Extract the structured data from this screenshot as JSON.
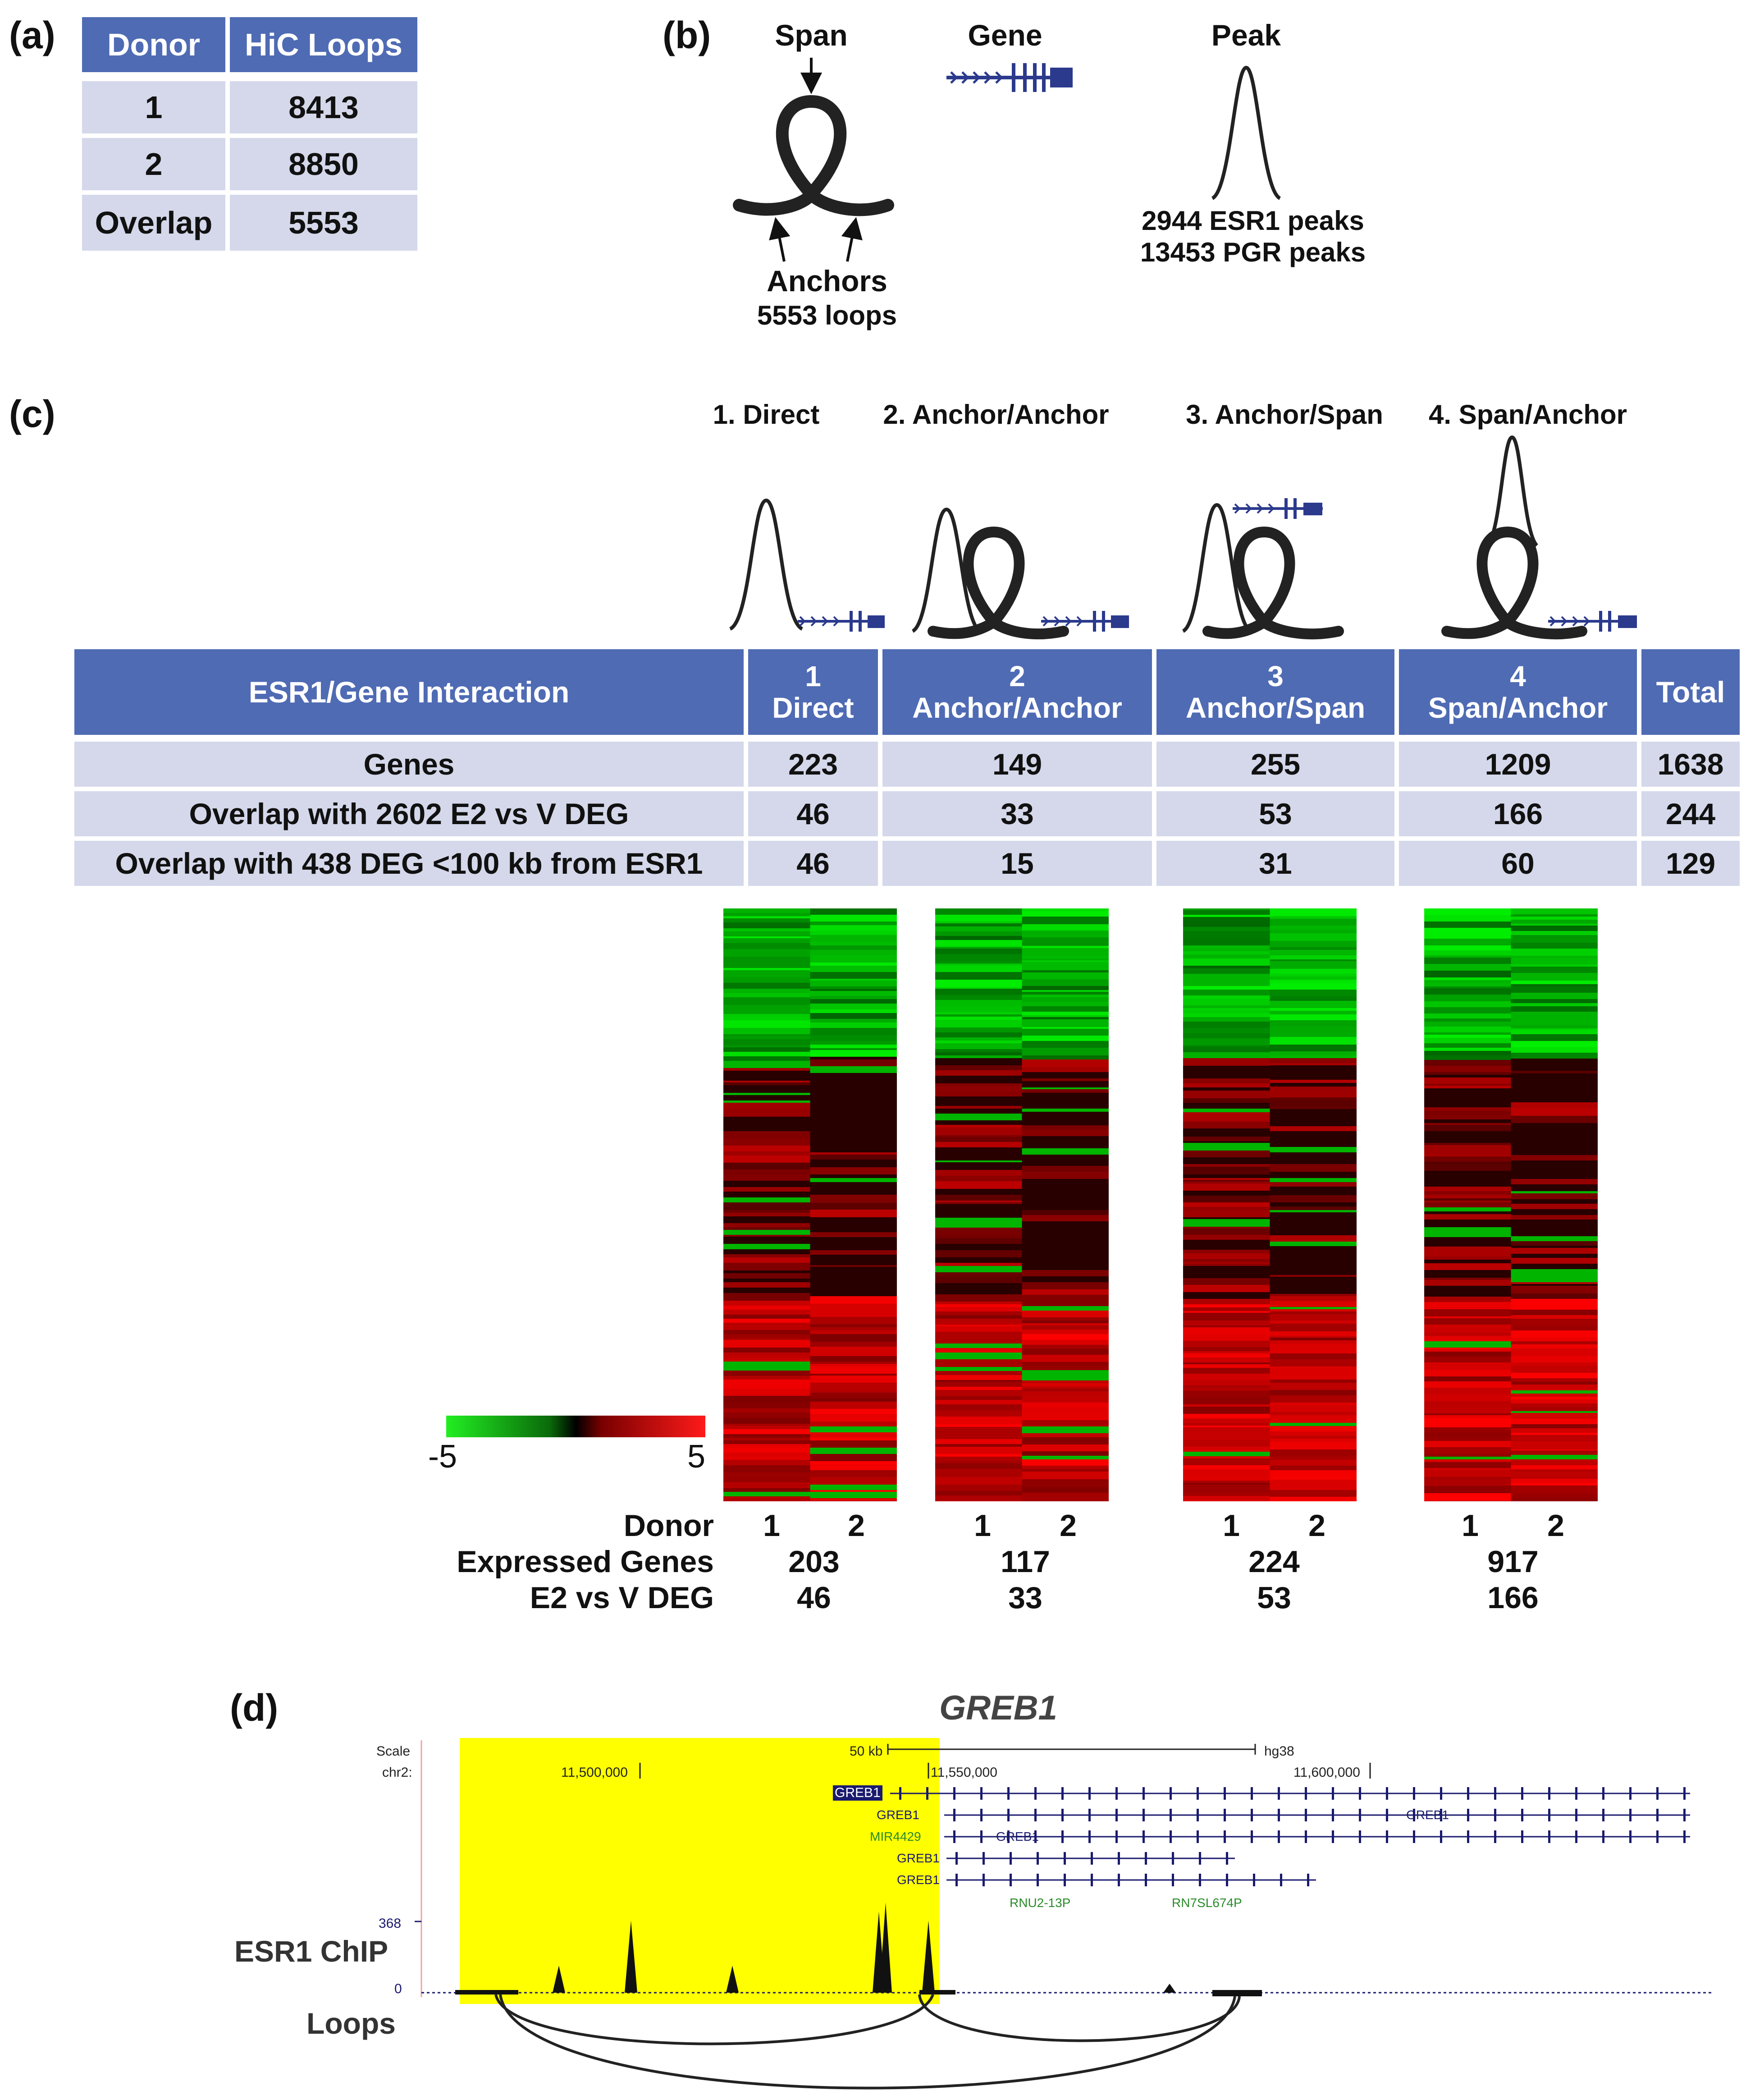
{
  "panel_labels": {
    "a": "(a)",
    "b": "(b)",
    "c": "(c)",
    "d": "(d)"
  },
  "panel_a": {
    "headers": [
      "Donor",
      "HiC Loops"
    ],
    "rows": [
      [
        "1",
        "8413"
      ],
      [
        "2",
        "8850"
      ],
      [
        "Overlap",
        "5553"
      ]
    ]
  },
  "panel_b": {
    "span": "Span",
    "gene": "Gene",
    "peak": "Peak",
    "anchors": "Anchors",
    "loops": "5553 loops",
    "esr1_peaks": "2944 ESR1 peaks",
    "pgr_peaks": "13453 PGR peaks"
  },
  "panel_c": {
    "categories": [
      "1. Direct",
      "2. Anchor/Anchor",
      "3. Anchor/Span",
      "4. Span/Anchor"
    ],
    "table_header": {
      "label": "ESR1/Gene Interaction",
      "cols": [
        [
          "1",
          "Direct"
        ],
        [
          "2",
          "Anchor/Anchor"
        ],
        [
          "3",
          "Anchor/Span"
        ],
        [
          "4",
          "Span/Anchor"
        ]
      ],
      "total": "Total"
    },
    "table_rows": [
      {
        "label": "Genes",
        "values": [
          "223",
          "149",
          "255",
          "1209",
          "1638"
        ]
      },
      {
        "label": "Overlap with 2602 E2 vs V DEG",
        "values": [
          "46",
          "33",
          "53",
          "166",
          "244"
        ]
      },
      {
        "label": "Overlap with 438 DEG <100 kb from ESR1",
        "values": [
          "46",
          "15",
          "31",
          "60",
          "129"
        ]
      }
    ],
    "scale_min": "-5",
    "scale_max": "5",
    "donor_label": "Donor",
    "expressed_label": "Expressed Genes",
    "deg_label": "E2 vs V DEG",
    "donor_nums": [
      "1",
      "2"
    ],
    "expressed": [
      "203",
      "117",
      "224",
      "917"
    ],
    "deg": [
      "46",
      "33",
      "53",
      "166"
    ],
    "colors": {
      "green": "#22ee22",
      "black": "#000000",
      "red": "#ff1a1a",
      "header": "#4f6bb4",
      "row": "#d4d8ea"
    }
  },
  "panel_d": {
    "title": "GREB1",
    "scale": "Scale",
    "chr": "chr2:",
    "scale_len": "50 kb",
    "assembly": "hg38",
    "pos1": "11,500,000",
    "pos2": "11,550,000",
    "pos3": "11,600,000",
    "genes": [
      "GREB1",
      "GREB1",
      "MIR4429",
      "GREB1",
      "GREB1",
      "GREB1",
      "GREB1"
    ],
    "rna1": "RNU2-13P",
    "rna2": "RN7SL674P",
    "ymax": "368",
    "ymin": "0",
    "chip_label": "ESR1 ChIP",
    "loops_label": "Loops",
    "highlight_color": "#ffff00"
  }
}
